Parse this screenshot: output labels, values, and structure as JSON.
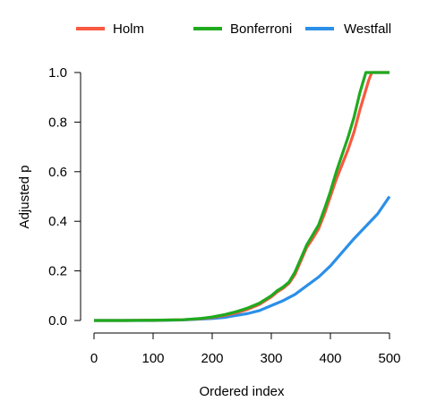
{
  "chart_data": {
    "type": "line",
    "title": "",
    "xlabel": "Ordered index",
    "ylabel": "Adjusted p",
    "xlim": [
      0,
      500
    ],
    "ylim": [
      0,
      1
    ],
    "x_ticks": [
      0,
      100,
      200,
      300,
      400,
      500
    ],
    "x_tick_labels": [
      "0",
      "100",
      "200",
      "300",
      "400",
      "500"
    ],
    "y_ticks": [
      0,
      0.2,
      0.4,
      0.6,
      0.8,
      1.0
    ],
    "y_tick_labels": [
      "0.0",
      "0.2",
      "0.4",
      "0.6",
      "0.8",
      "1.0"
    ],
    "grid": false,
    "legend": "top",
    "series": [
      {
        "name": "Holm",
        "color": "#F8593F",
        "x": [
          0,
          50,
          100,
          150,
          180,
          200,
          220,
          240,
          260,
          280,
          300,
          310,
          320,
          330,
          340,
          350,
          360,
          370,
          380,
          390,
          400,
          410,
          420,
          430,
          440,
          450,
          460,
          465,
          470,
          500
        ],
        "y": [
          0,
          0,
          0.001,
          0.003,
          0.007,
          0.012,
          0.02,
          0.03,
          0.045,
          0.065,
          0.095,
          0.115,
          0.13,
          0.15,
          0.185,
          0.24,
          0.295,
          0.33,
          0.37,
          0.43,
          0.5,
          0.57,
          0.63,
          0.69,
          0.76,
          0.85,
          0.93,
          0.97,
          1.0,
          1.0
        ]
      },
      {
        "name": "Bonferroni",
        "color": "#1FAA1F",
        "x": [
          0,
          50,
          100,
          150,
          180,
          200,
          220,
          240,
          260,
          280,
          300,
          310,
          320,
          330,
          340,
          350,
          360,
          370,
          380,
          390,
          400,
          410,
          420,
          430,
          440,
          450,
          460,
          500
        ],
        "y": [
          0,
          0,
          0.001,
          0.003,
          0.008,
          0.014,
          0.023,
          0.035,
          0.05,
          0.07,
          0.1,
          0.12,
          0.135,
          0.155,
          0.195,
          0.25,
          0.305,
          0.345,
          0.385,
          0.45,
          0.52,
          0.6,
          0.67,
          0.74,
          0.82,
          0.92,
          1.0,
          1.0
        ]
      },
      {
        "name": "Westfall",
        "color": "#2B8FE8",
        "x": [
          0,
          50,
          100,
          150,
          200,
          220,
          240,
          260,
          280,
          300,
          320,
          340,
          360,
          380,
          400,
          420,
          440,
          460,
          480,
          500
        ],
        "y": [
          0,
          0,
          0,
          0.002,
          0.008,
          0.012,
          0.02,
          0.028,
          0.04,
          0.06,
          0.08,
          0.105,
          0.14,
          0.175,
          0.22,
          0.275,
          0.33,
          0.38,
          0.43,
          0.5
        ]
      }
    ]
  }
}
